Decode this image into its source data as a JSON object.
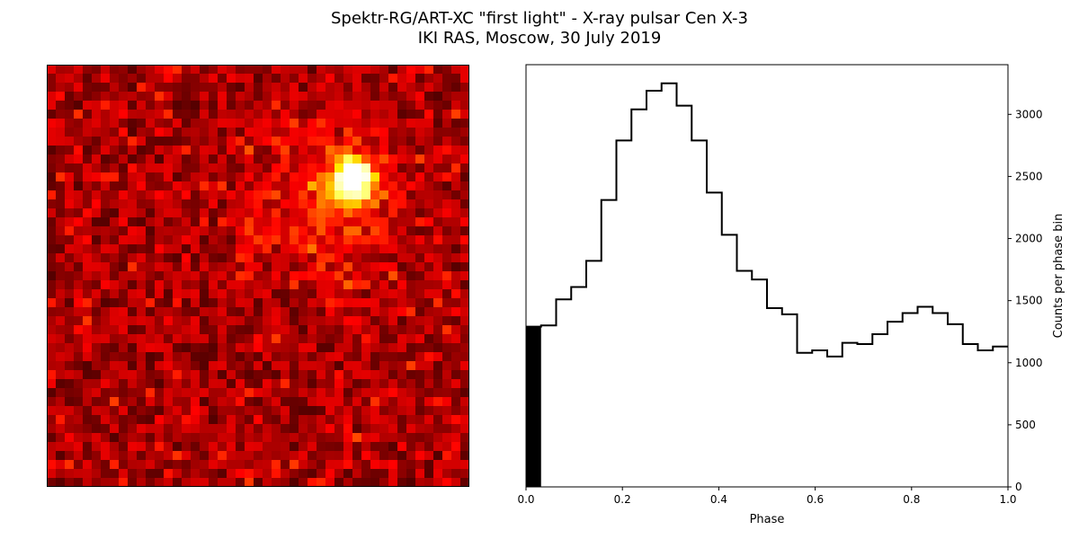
{
  "figure": {
    "title_line1": "Spektr-RG/ART-XC \"first light\" - X-ray pulsar Cen X-3",
    "title_line2": "IKI RAS, Moscow, 30 July 2019"
  },
  "chart_data": [
    {
      "type": "heatmap",
      "colormap": "hot",
      "grid": [
        47,
        47
      ],
      "axes_visible": false,
      "source_peak": {
        "col": 33.5,
        "row": 12.5,
        "sigma": 1.6,
        "amplitude": 0.95
      },
      "halo": {
        "col": 31,
        "row": 15,
        "sigma": 5.5,
        "amplitude": 0.18
      },
      "background_level": 0.22,
      "noise_level": 0.22
    },
    {
      "type": "step",
      "xlabel": "Phase",
      "ylabel": "Counts per phase bin",
      "xlim": [
        0.0,
        1.0
      ],
      "ylim": [
        0,
        3400
      ],
      "x_ticks": [
        "0.0",
        "0.2",
        "0.4",
        "0.6",
        "0.8",
        "1.0"
      ],
      "y_ticks": [
        "0",
        "500",
        "1000",
        "1500",
        "2000",
        "2500",
        "3000"
      ],
      "y_axis_side": "right",
      "line_color": "#000000",
      "filled_first_bin": {
        "x_start": 0.0,
        "x_end": 0.03125,
        "value": 1290
      },
      "bin_edges": [
        0.0,
        0.03125,
        0.0625,
        0.09375,
        0.125,
        0.15625,
        0.1875,
        0.21875,
        0.25,
        0.28125,
        0.3125,
        0.34375,
        0.375,
        0.40625,
        0.4375,
        0.46875,
        0.5,
        0.53125,
        0.5625,
        0.59375,
        0.625,
        0.65625,
        0.6875,
        0.71875,
        0.75,
        0.78125,
        0.8125,
        0.84375,
        0.875,
        0.90625,
        0.9375,
        0.96875,
        1.0
      ],
      "values": [
        1290,
        1300,
        1510,
        1610,
        1820,
        2310,
        2790,
        3040,
        3190,
        3250,
        3070,
        2790,
        2370,
        2030,
        1740,
        1670,
        1440,
        1390,
        1080,
        1100,
        1050,
        1160,
        1150,
        1230,
        1330,
        1400,
        1450,
        1400,
        1310,
        1150,
        1100,
        1130
      ]
    }
  ]
}
